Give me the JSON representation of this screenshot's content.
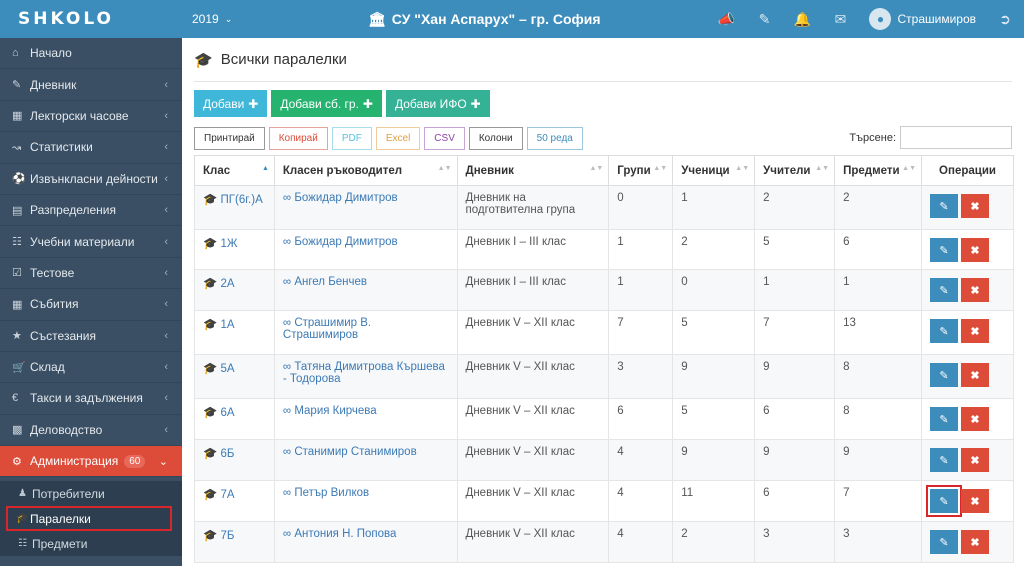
{
  "app": {
    "logo": "SHKOLO",
    "year": "2019",
    "school": "СУ \"Хан Аспарух\" – гр. София",
    "user": "Страшимиров"
  },
  "icons": {
    "school": "institution-icon",
    "megaphone": "megaphone-icon",
    "edit": "edit-icon",
    "bell": "bell-icon",
    "mail": "envelope-icon",
    "logout": "sign-out-icon"
  },
  "sidebar": {
    "items": [
      {
        "label": "Начало",
        "icon": "home-icon"
      },
      {
        "label": "Дневник",
        "icon": "edit-icon"
      },
      {
        "label": "Лекторски часове",
        "icon": "calendar-icon"
      },
      {
        "label": "Статистики",
        "icon": "chart-icon"
      },
      {
        "label": "Извънкласни дейности",
        "icon": "futbol-icon"
      },
      {
        "label": "Разпределения",
        "icon": "list-icon"
      },
      {
        "label": "Учебни материали",
        "icon": "book-icon"
      },
      {
        "label": "Тестове",
        "icon": "check-square-icon"
      },
      {
        "label": "Събития",
        "icon": "calendar-icon"
      },
      {
        "label": "Състезания",
        "icon": "trophy-icon"
      },
      {
        "label": "Склад",
        "icon": "cart-icon"
      },
      {
        "label": "Такси и задължения",
        "icon": "euro-icon"
      },
      {
        "label": "Деловодство",
        "icon": "folder-icon"
      }
    ],
    "admin": {
      "label": "Администрация",
      "badge": "60"
    },
    "sub": [
      {
        "label": "Потребители"
      },
      {
        "label": "Паралелки"
      },
      {
        "label": "Предмети"
      }
    ]
  },
  "page": {
    "title": "Всички паралелки",
    "add_buttons": [
      "Добави",
      "Добави сб. гр.",
      "Добави ИФО"
    ],
    "tools": [
      "Принтирай",
      "Копирай",
      "PDF",
      "Excel",
      "CSV",
      "Колони",
      "50 реда"
    ],
    "search_label": "Търсене:",
    "search_value": ""
  },
  "table": {
    "headers": [
      "Клас",
      "Класен ръководител",
      "Дневник",
      "Групи",
      "Ученици",
      "Учители",
      "Предмети",
      "Операции"
    ],
    "rows": [
      {
        "cls": "ПГ(6г.)А",
        "teacher": "Божидар Димитров",
        "journal": "Дневник на подготвителна група",
        "groups": "0",
        "students": "1",
        "teachers": "2",
        "subjects": "2"
      },
      {
        "cls": "1Ж",
        "teacher": "Божидар Димитров",
        "journal": "Дневник I – III клас",
        "groups": "1",
        "students": "2",
        "teachers": "5",
        "subjects": "6"
      },
      {
        "cls": "2А",
        "teacher": "Ангел Бенчев",
        "journal": "Дневник I – III клас",
        "groups": "1",
        "students": "0",
        "teachers": "1",
        "subjects": "1"
      },
      {
        "cls": "1А",
        "teacher": "Страшимир В. Страшимиров",
        "journal": "Дневник V – XII клас",
        "groups": "7",
        "students": "5",
        "teachers": "7",
        "subjects": "13"
      },
      {
        "cls": "5А",
        "teacher": "Татяна Димитрова Кършева - Тодорова",
        "journal": "Дневник V – XII клас",
        "groups": "3",
        "students": "9",
        "teachers": "9",
        "subjects": "8"
      },
      {
        "cls": "6А",
        "teacher": "Мария Кирчева",
        "journal": "Дневник V – XII клас",
        "groups": "6",
        "students": "5",
        "teachers": "6",
        "subjects": "8"
      },
      {
        "cls": "6Б",
        "teacher": "Станимир Станимиров",
        "journal": "Дневник V – XII клас",
        "groups": "4",
        "students": "9",
        "teachers": "9",
        "subjects": "9"
      },
      {
        "cls": "7А",
        "teacher": "Петър Вилков",
        "journal": "Дневник V – XII клас",
        "groups": "4",
        "students": "11",
        "teachers": "6",
        "subjects": "7"
      },
      {
        "cls": "7Б",
        "teacher": "Антония Н. Попова",
        "journal": "Дневник V – XII клас",
        "groups": "4",
        "students": "2",
        "teachers": "3",
        "subjects": "3"
      }
    ]
  },
  "colors": {
    "topbar": "#3c8dbc",
    "sidebar": "#3a4f63",
    "active": "#dd4b39",
    "link": "#3c7ab5",
    "highlight": "#d9262a"
  }
}
